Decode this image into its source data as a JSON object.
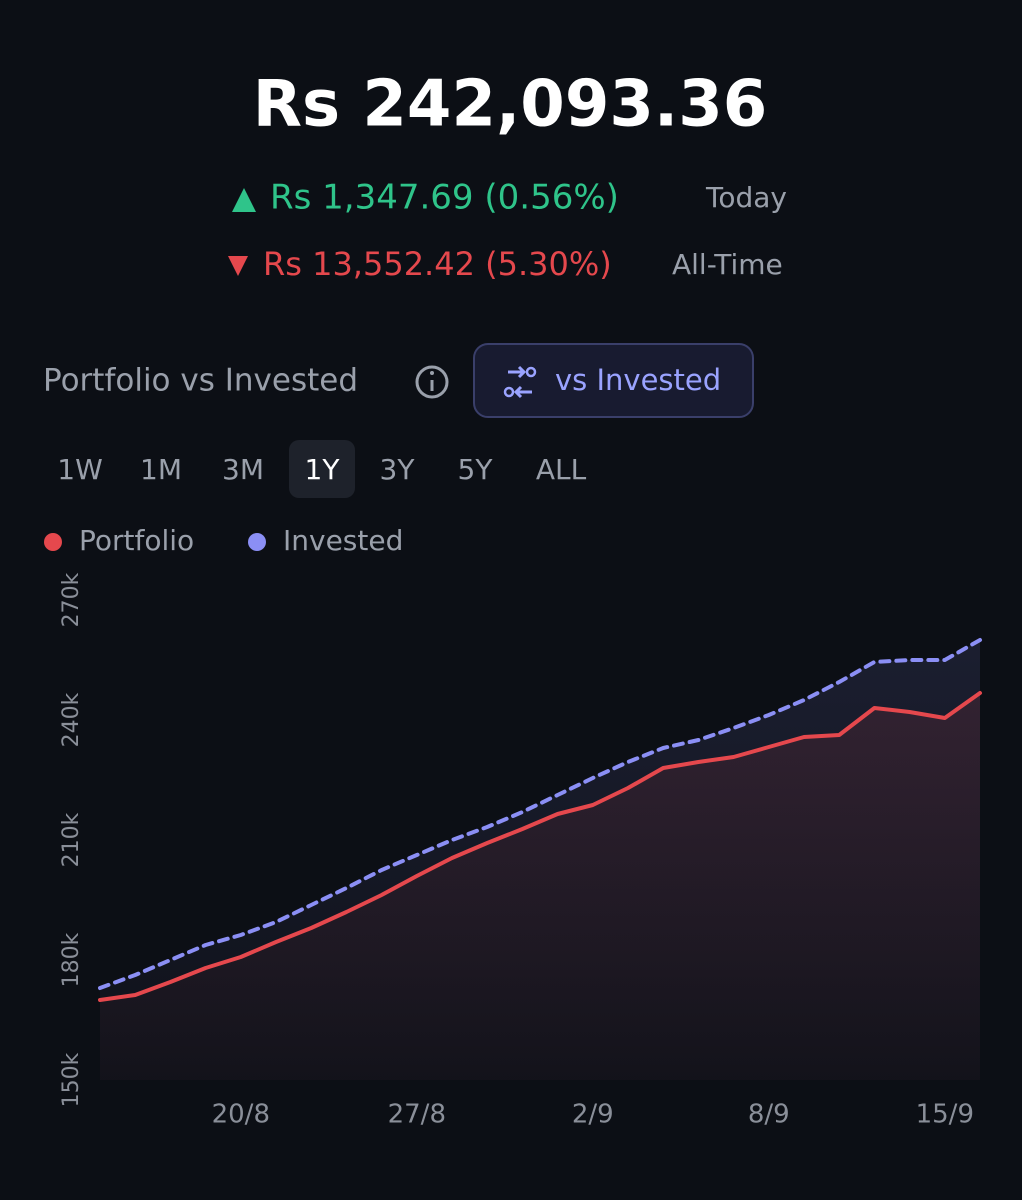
{
  "header": {
    "total": "Rs 242,093.36",
    "today": {
      "change": "Rs 1,347.69 (0.56%)",
      "label": "Today"
    },
    "all_time": {
      "change": "Rs 13,552.42 (5.30%)",
      "label": "All-Time"
    }
  },
  "section": {
    "title": "Portfolio vs Invested",
    "toggle": "vs Invested"
  },
  "ranges": [
    "1W",
    "1M",
    "3M",
    "1Y",
    "3Y",
    "5Y",
    "ALL"
  ],
  "selected_range": 3,
  "chart_data": {
    "type": "line",
    "categories": [
      null,
      null,
      null,
      null,
      "20/8",
      null,
      null,
      null,
      null,
      "27/8",
      null,
      null,
      null,
      null,
      "2/9",
      null,
      null,
      null,
      null,
      "8/9",
      null,
      null,
      null,
      null,
      "15/9",
      null
    ],
    "series": [
      {
        "name": "Portfolio",
        "color": "#e5484d",
        "style": "solid",
        "values": [
          170000,
          171250,
          174500,
          178000,
          180750,
          184500,
          188000,
          192000,
          196250,
          201000,
          205500,
          209250,
          212750,
          216500,
          218750,
          223000,
          228000,
          229500,
          230750,
          233250,
          235750,
          236250,
          243000,
          242000,
          240500,
          246750
        ]
      },
      {
        "name": "Invested",
        "color": "#8b8ff5",
        "style": "dashed",
        "values": [
          173000,
          176250,
          180000,
          183750,
          186250,
          189500,
          193750,
          198000,
          202500,
          206250,
          210000,
          213250,
          217000,
          221250,
          225500,
          229500,
          233000,
          235000,
          238000,
          241250,
          245000,
          249500,
          254500,
          255000,
          255000,
          260000
        ]
      }
    ],
    "ylim": [
      150000,
      270000
    ],
    "yticks": [
      {
        "value": 150000,
        "label": "150k"
      },
      {
        "value": 180000,
        "label": "180k"
      },
      {
        "value": 210000,
        "label": "210k"
      },
      {
        "value": 240000,
        "label": "240k"
      },
      {
        "value": 270000,
        "label": "270k"
      }
    ],
    "grid": false
  }
}
